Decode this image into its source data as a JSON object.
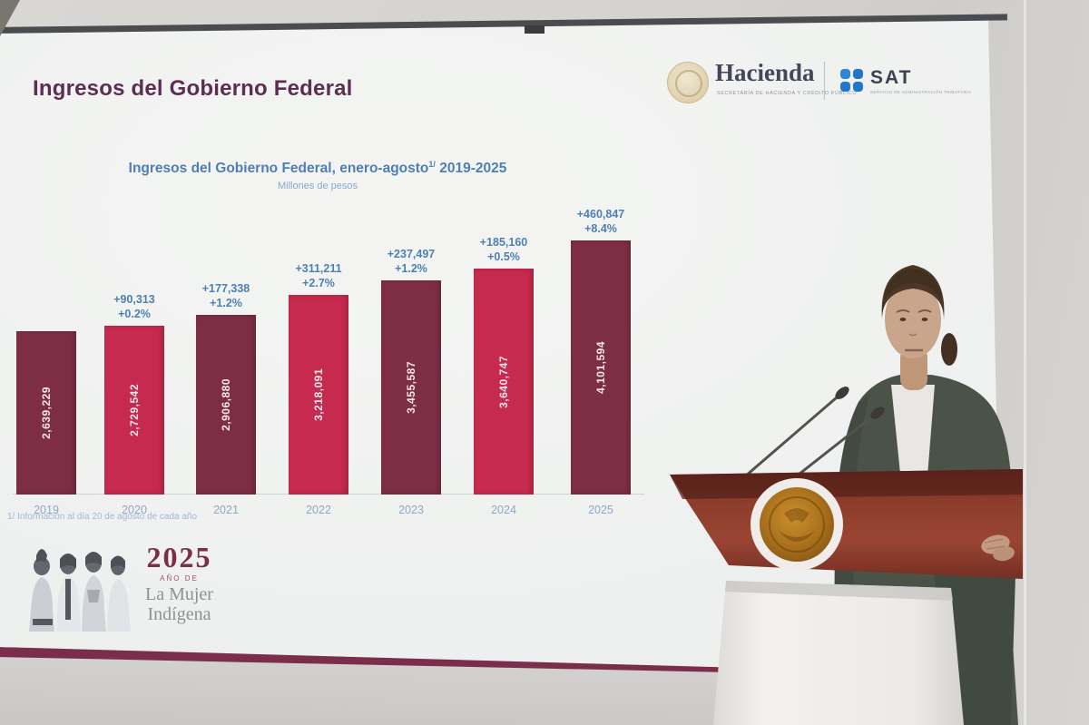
{
  "slide": {
    "title": "Ingresos del Gobierno Federal",
    "footnote": "1/ Información al día 20 de agosto de cada año"
  },
  "logos": {
    "hacienda": {
      "wordmark": "Hacienda",
      "caption": "SECRETARÍA DE HACIENDA Y CRÉDITO PÚBLICO"
    },
    "sat": {
      "wordmark": "SAT",
      "caption": "SERVICIO DE ADMINISTRACIÓN TRIBUTARIA"
    }
  },
  "anniversary": {
    "year": "2025",
    "pretitle": "AÑO DE",
    "title_line1": "La Mujer",
    "title_line2": "Indígena"
  },
  "chart_data": {
    "type": "bar",
    "title": "Ingresos del Gobierno Federal, enero-agosto",
    "title_note_marker": "1/",
    "title_suffix": "2019-2025",
    "subtitle": "Millones de pesos",
    "categories": [
      "2019",
      "2020",
      "2021",
      "2022",
      "2023",
      "2024",
      "2025"
    ],
    "values": [
      2639229,
      2729542,
      2906880,
      3218091,
      3455587,
      3640747,
      4101594
    ],
    "bars": [
      {
        "year": "2019",
        "value_label": "2,639,229",
        "delta": "",
        "pct": ""
      },
      {
        "year": "2020",
        "value_label": "2,729,542",
        "delta": "+90,313",
        "pct": "+0.2%"
      },
      {
        "year": "2021",
        "value_label": "2,906,880",
        "delta": "+177,338",
        "pct": "+1.2%"
      },
      {
        "year": "2022",
        "value_label": "3,218,091",
        "delta": "+311,211",
        "pct": "+2.7%"
      },
      {
        "year": "2023",
        "value_label": "3,455,587",
        "delta": "+237,497",
        "pct": "+1.2%"
      },
      {
        "year": "2024",
        "value_label": "3,640,747",
        "delta": "+185,160",
        "pct": "+0.5%"
      },
      {
        "year": "2025",
        "value_label": "4,101,594",
        "delta": "+460,847",
        "pct": "+8.4%"
      }
    ],
    "ylim": [
      0,
      4300000
    ],
    "grid": false,
    "legend": "none"
  },
  "colors": {
    "bar_dark": "#7e2e44",
    "bar_bright": "#c62a4e",
    "accent_blue": "#4d7fb5",
    "title_plum": "#5c2e51",
    "stripe_maroon": "#7b2e4c",
    "sat_blue": "#2277cc",
    "wood_brown": "#93402f"
  }
}
